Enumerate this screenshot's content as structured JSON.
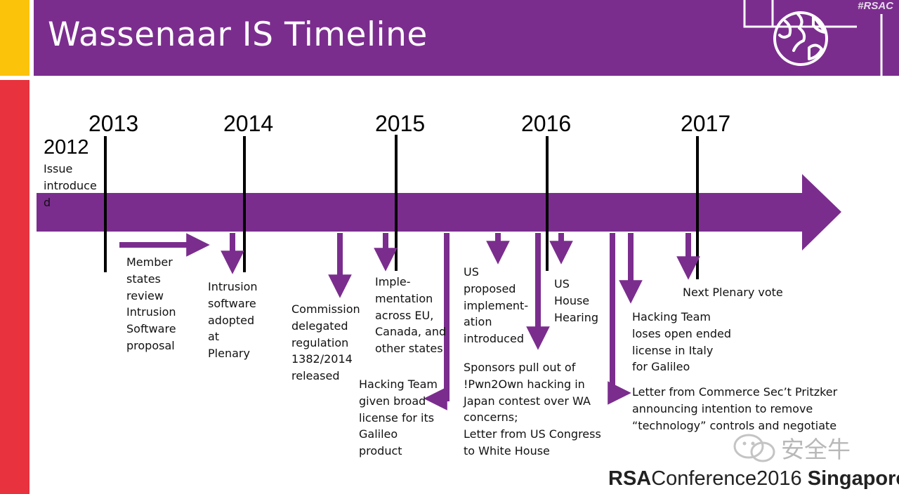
{
  "slide": {
    "title": "Wassenaar IS Timeline",
    "hashtag": "#RSAC",
    "footer": {
      "brand": "RSA",
      "conference": "Conference2016",
      "location": "Singapore"
    },
    "watermark": "安全牛"
  },
  "colors": {
    "purple": "#7b2d8e",
    "yellow": "#fcc30b",
    "red": "#e8323d",
    "text": "#111111"
  },
  "years": [
    "2012",
    "2013",
    "2014",
    "2015",
    "2016",
    "2017"
  ],
  "events": {
    "issue_introduced": "Issue\nintroduce\nd",
    "member_states": "Member\nstates\nreview\nIntrusion\nSoftware\nproposal",
    "intrusion_adopted": "Intrusion\nsoftware\nadopted\nat\nPlenary",
    "commission": "Commission\ndelegated\nregulation\n1382/2014\nreleased",
    "implementation": "Imple-\nmentation\nacross EU,\nCanada, and\nother states",
    "hacking_broad": "Hacking Team\ngiven broad\nlicense for its\nGalileo\nproduct",
    "us_proposed": "US\nproposed\nimplement-\nation\nintroduced",
    "sponsors": "Sponsors pull out of\n!Pwn2Own hacking in\nJapan contest over WA\nconcerns;\nLetter from US Congress\nto White House",
    "us_hearing": "US\nHouse\nHearing",
    "hacking_loses": "Hacking Team\nloses open ended\nlicense in Italy\nfor Galileo",
    "letter_commerce": "Letter from Commerce Sec’t Pritzker\nannouncing intention to remove\n“technology” controls and negotiate",
    "next_plenary": "Next Plenary vote"
  },
  "icons": [
    "globe-icon"
  ]
}
